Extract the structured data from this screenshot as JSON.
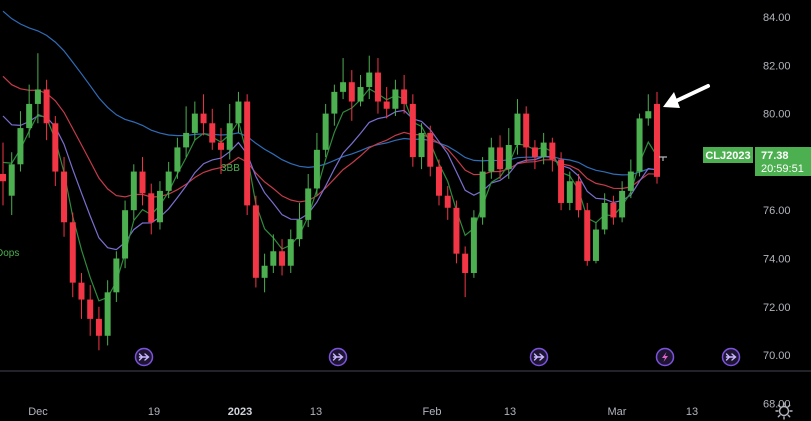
{
  "chart_data": {
    "type": "candlestick",
    "symbol": "CLJ2023",
    "last_price": "77.38",
    "countdown": "20:59:51",
    "yticks": [
      "84.00",
      "82.00",
      "80.00",
      "78.00",
      "76.00",
      "74.00",
      "72.00",
      "70.00",
      "68.00"
    ],
    "ylim": [
      67.0,
      85.0
    ],
    "xticks": [
      "Dec",
      "19",
      "2023",
      "13",
      "Feb",
      "13",
      "Mar",
      "13"
    ],
    "candles": [
      [
        77.5,
        77.2,
        78.8,
        76.2
      ],
      [
        76.6,
        77.9,
        78.4,
        75.8
      ],
      [
        77.9,
        79.4,
        80.1,
        77.6
      ],
      [
        79.4,
        80.4,
        81.2,
        79.0
      ],
      [
        80.4,
        81.0,
        82.5,
        79.6
      ],
      [
        81.0,
        79.6,
        81.4,
        78.9
      ],
      [
        79.6,
        77.6,
        79.9,
        77.0
      ],
      [
        77.6,
        75.5,
        78.2,
        74.9
      ],
      [
        75.5,
        73.0,
        75.9,
        72.4
      ],
      [
        73.0,
        72.3,
        73.4,
        71.5
      ],
      [
        72.3,
        71.5,
        72.9,
        70.8
      ],
      [
        71.5,
        70.8,
        72.0,
        70.2
      ],
      [
        70.8,
        72.6,
        73.1,
        70.4
      ],
      [
        72.6,
        74.0,
        74.3,
        72.2
      ],
      [
        74.0,
        76.0,
        76.4,
        73.6
      ],
      [
        76.0,
        77.6,
        77.9,
        75.6
      ],
      [
        77.6,
        76.7,
        78.2,
        76.2
      ],
      [
        76.7,
        75.5,
        77.1,
        75.0
      ],
      [
        75.5,
        76.8,
        77.2,
        75.2
      ],
      [
        76.8,
        77.6,
        78.0,
        76.5
      ],
      [
        77.6,
        78.6,
        79.0,
        77.3
      ],
      [
        78.6,
        79.2,
        80.3,
        78.2
      ],
      [
        79.2,
        80.0,
        80.5,
        78.9
      ],
      [
        80.0,
        79.6,
        80.8,
        79.1
      ],
      [
        79.6,
        78.8,
        80.2,
        78.5
      ],
      [
        78.8,
        78.5,
        79.4,
        77.5
      ],
      [
        78.5,
        79.6,
        80.4,
        78.1
      ],
      [
        79.6,
        80.5,
        80.9,
        79.2
      ],
      [
        80.5,
        76.2,
        80.8,
        75.8
      ],
      [
        76.2,
        73.2,
        76.6,
        72.8
      ],
      [
        73.2,
        73.7,
        74.2,
        72.6
      ],
      [
        73.7,
        74.3,
        75.0,
        73.4
      ],
      [
        74.3,
        73.7,
        74.8,
        73.3
      ],
      [
        73.7,
        74.8,
        75.2,
        73.4
      ],
      [
        74.8,
        75.6,
        76.3,
        74.5
      ],
      [
        75.6,
        76.9,
        77.5,
        75.3
      ],
      [
        76.9,
        78.5,
        79.2,
        76.6
      ],
      [
        78.5,
        80.0,
        80.4,
        78.2
      ],
      [
        80.0,
        80.9,
        81.2,
        79.5
      ],
      [
        80.9,
        81.3,
        82.3,
        80.6
      ],
      [
        81.3,
        80.5,
        81.8,
        79.7
      ],
      [
        80.5,
        81.1,
        81.6,
        80.3
      ],
      [
        81.1,
        81.7,
        82.4,
        80.6
      ],
      [
        81.7,
        80.5,
        82.3,
        80.0
      ],
      [
        80.5,
        80.2,
        81.1,
        79.8
      ],
      [
        80.2,
        81.0,
        81.4,
        79.9
      ],
      [
        81.0,
        80.4,
        81.6,
        80.0
      ],
      [
        80.4,
        78.2,
        80.8,
        77.8
      ],
      [
        78.2,
        79.2,
        79.6,
        77.7
      ],
      [
        79.2,
        77.8,
        79.5,
        77.4
      ],
      [
        77.8,
        76.6,
        78.1,
        76.2
      ],
      [
        76.6,
        76.1,
        77.0,
        75.6
      ],
      [
        76.1,
        74.2,
        76.4,
        73.8
      ],
      [
        74.2,
        73.4,
        74.5,
        72.4
      ],
      [
        73.4,
        75.7,
        76.0,
        73.2
      ],
      [
        75.7,
        77.6,
        78.2,
        75.4
      ],
      [
        77.6,
        78.6,
        79.0,
        77.3
      ],
      [
        78.6,
        77.7,
        79.1,
        77.3
      ],
      [
        77.7,
        78.7,
        79.4,
        77.3
      ],
      [
        78.7,
        80.0,
        80.6,
        78.3
      ],
      [
        80.0,
        78.6,
        80.3,
        78.0
      ],
      [
        78.6,
        78.2,
        78.9,
        77.7
      ],
      [
        78.2,
        78.8,
        79.2,
        77.9
      ],
      [
        78.8,
        78.1,
        79.0,
        77.6
      ],
      [
        78.1,
        76.3,
        78.4,
        76.0
      ],
      [
        76.3,
        77.2,
        77.6,
        76.0
      ],
      [
        77.2,
        76.0,
        77.5,
        75.7
      ],
      [
        76.0,
        73.9,
        76.3,
        73.7
      ],
      [
        73.9,
        75.2,
        75.5,
        73.8
      ],
      [
        75.2,
        76.3,
        76.7,
        75.0
      ],
      [
        76.3,
        75.7,
        76.6,
        75.4
      ],
      [
        75.7,
        76.8,
        77.2,
        75.5
      ],
      [
        76.8,
        77.6,
        78.1,
        76.5
      ],
      [
        77.6,
        79.8,
        80.0,
        77.4
      ],
      [
        79.8,
        80.1,
        80.8,
        79.5
      ],
      [
        80.4,
        77.38,
        80.9,
        77.1
      ]
    ],
    "colors": {
      "up": "#4caf50",
      "down": "#f23645",
      "ma_fast": "#2e8b3c",
      "ma_mid": "#7a6fd0",
      "ma_slow": "#2f6db6",
      "ma_red": "#c43b4b",
      "badge": "#4caf50",
      "event": "#7d53de"
    },
    "annotations": {
      "left_label": "Dops",
      "mid_label": "3BB"
    }
  }
}
